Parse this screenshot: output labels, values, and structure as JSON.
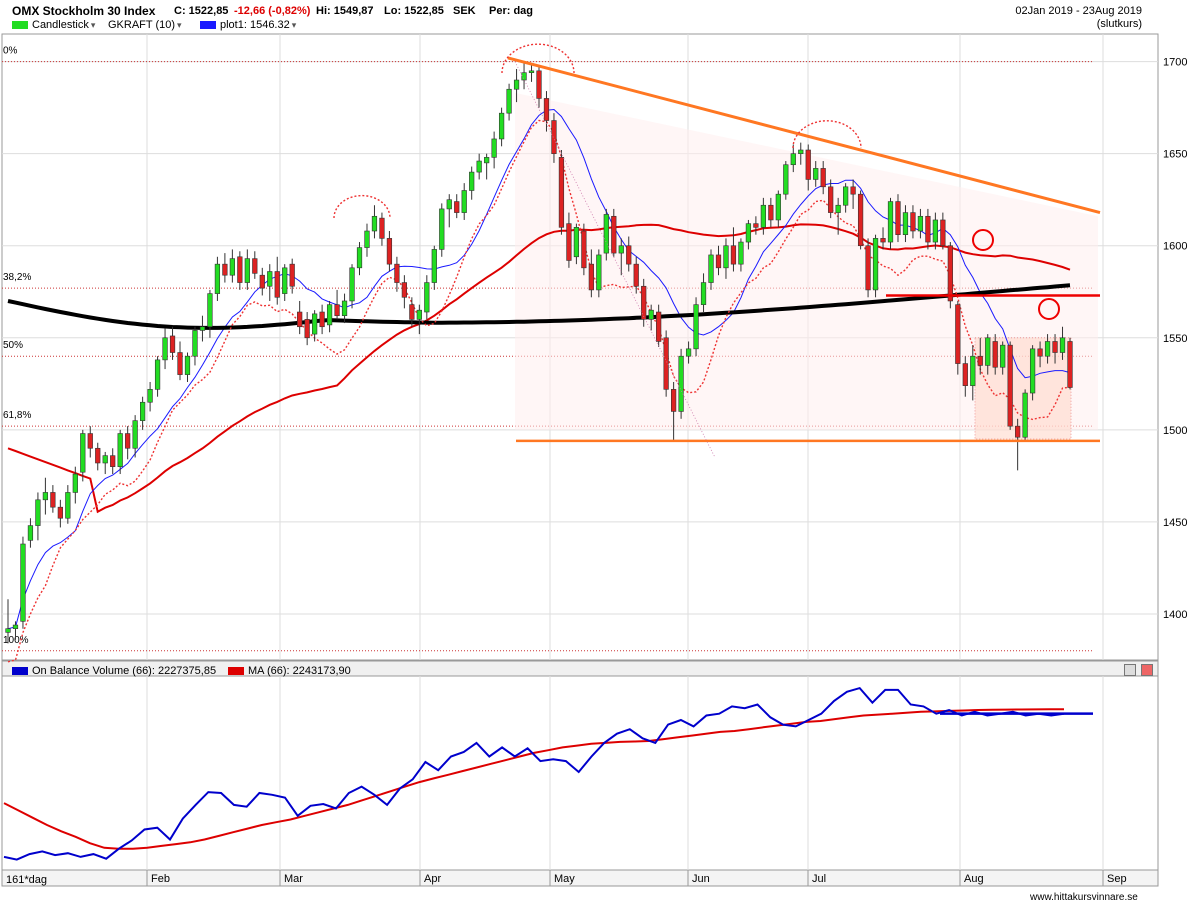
{
  "header": {
    "title": "OMX Stockholm 30 Index",
    "close": "C: 1522,85",
    "change": "-12,66 (-0,82%)",
    "high": "Hi: 1549,87",
    "low": "Lo: 1522,85",
    "currency": "SEK",
    "period": "Per: dag",
    "date_range": "02Jan 2019 - 23Aug 2019",
    "price_basis": "(slutkurs)"
  },
  "legend": {
    "candlestick": "Candlestick",
    "gkraft": "GKRAFT (10)",
    "plot1": "plot1: 1546.32",
    "obv": "On Balance Volume (66): 2227375,85",
    "ma": "MA (66): 2243173,90"
  },
  "footer": {
    "period_label": "161*dag",
    "watermark": "www.hittakursvinnare.se"
  },
  "colors": {
    "up": "#22dd22",
    "down": "#dd2222",
    "ma_red": "#dd0000",
    "ma_blue": "#1a1aff",
    "ma_black": "#000000",
    "trend_orange": "#ff7722",
    "obv_blue": "#0000cc"
  },
  "chart_data": [
    {
      "type": "candlestick",
      "name": "OMX Stockholm 30 Index",
      "ylim": [
        1375,
        1715
      ],
      "yticks": [
        "1400",
        "1450",
        "1500",
        "1550",
        "1600",
        "1650",
        "1700"
      ],
      "months": [
        "Feb",
        "Mar",
        "Apr",
        "May",
        "Jun",
        "Jul",
        "Aug",
        "Sep"
      ],
      "fib_levels": [
        {
          "label": "0%",
          "value": 1700
        },
        {
          "label": "38,2%",
          "value": 1577
        },
        {
          "label": "50%",
          "value": 1540
        },
        {
          "label": "61,8%",
          "value": 1502
        },
        {
          "label": "100%",
          "value": 1380
        }
      ],
      "horizontal_lines": {
        "support": 1494,
        "resistance": 1573
      },
      "ma_200_start": 1570,
      "candles": [
        {
          "o": 1390,
          "h": 1408,
          "l": 1384,
          "c": 1392
        },
        {
          "o": 1392,
          "h": 1396,
          "l": 1386,
          "c": 1394
        },
        {
          "o": 1396,
          "h": 1442,
          "l": 1392,
          "c": 1438
        },
        {
          "o": 1440,
          "h": 1452,
          "l": 1436,
          "c": 1448
        },
        {
          "o": 1448,
          "h": 1466,
          "l": 1440,
          "c": 1462
        },
        {
          "o": 1462,
          "h": 1474,
          "l": 1454,
          "c": 1466
        },
        {
          "o": 1466,
          "h": 1470,
          "l": 1455,
          "c": 1458
        },
        {
          "o": 1458,
          "h": 1462,
          "l": 1447,
          "c": 1452
        },
        {
          "o": 1452,
          "h": 1470,
          "l": 1449,
          "c": 1466
        },
        {
          "o": 1466,
          "h": 1480,
          "l": 1460,
          "c": 1476
        },
        {
          "o": 1477,
          "h": 1500,
          "l": 1472,
          "c": 1498
        },
        {
          "o": 1498,
          "h": 1502,
          "l": 1485,
          "c": 1490
        },
        {
          "o": 1490,
          "h": 1493,
          "l": 1478,
          "c": 1482
        },
        {
          "o": 1482,
          "h": 1488,
          "l": 1476,
          "c": 1486
        },
        {
          "o": 1486,
          "h": 1490,
          "l": 1476,
          "c": 1480
        },
        {
          "o": 1480,
          "h": 1500,
          "l": 1476,
          "c": 1498
        },
        {
          "o": 1498,
          "h": 1502,
          "l": 1484,
          "c": 1490
        },
        {
          "o": 1490,
          "h": 1508,
          "l": 1485,
          "c": 1505
        },
        {
          "o": 1505,
          "h": 1518,
          "l": 1500,
          "c": 1515
        },
        {
          "o": 1515,
          "h": 1526,
          "l": 1510,
          "c": 1522
        },
        {
          "o": 1522,
          "h": 1540,
          "l": 1518,
          "c": 1538
        },
        {
          "o": 1538,
          "h": 1555,
          "l": 1533,
          "c": 1550
        },
        {
          "o": 1551,
          "h": 1556,
          "l": 1538,
          "c": 1542
        },
        {
          "o": 1542,
          "h": 1548,
          "l": 1527,
          "c": 1530
        },
        {
          "o": 1530,
          "h": 1542,
          "l": 1526,
          "c": 1540
        },
        {
          "o": 1540,
          "h": 1556,
          "l": 1535,
          "c": 1554
        },
        {
          "o": 1554,
          "h": 1562,
          "l": 1548,
          "c": 1556
        },
        {
          "o": 1556,
          "h": 1576,
          "l": 1550,
          "c": 1574
        },
        {
          "o": 1574,
          "h": 1594,
          "l": 1570,
          "c": 1590
        },
        {
          "o": 1590,
          "h": 1596,
          "l": 1580,
          "c": 1584
        },
        {
          "o": 1584,
          "h": 1598,
          "l": 1580,
          "c": 1593
        },
        {
          "o": 1594,
          "h": 1597,
          "l": 1576,
          "c": 1580
        },
        {
          "o": 1580,
          "h": 1598,
          "l": 1576,
          "c": 1593
        },
        {
          "o": 1593,
          "h": 1597,
          "l": 1582,
          "c": 1585
        },
        {
          "o": 1584,
          "h": 1588,
          "l": 1573,
          "c": 1577
        },
        {
          "o": 1578,
          "h": 1590,
          "l": 1570,
          "c": 1586
        },
        {
          "o": 1586,
          "h": 1594,
          "l": 1568,
          "c": 1572
        },
        {
          "o": 1574,
          "h": 1590,
          "l": 1570,
          "c": 1588
        },
        {
          "o": 1590,
          "h": 1593,
          "l": 1574,
          "c": 1578
        },
        {
          "o": 1564,
          "h": 1570,
          "l": 1552,
          "c": 1556
        },
        {
          "o": 1560,
          "h": 1564,
          "l": 1546,
          "c": 1550
        },
        {
          "o": 1552,
          "h": 1565,
          "l": 1548,
          "c": 1563
        },
        {
          "o": 1564,
          "h": 1568,
          "l": 1552,
          "c": 1556
        },
        {
          "o": 1557,
          "h": 1570,
          "l": 1553,
          "c": 1568
        },
        {
          "o": 1568,
          "h": 1576,
          "l": 1560,
          "c": 1562
        },
        {
          "o": 1562,
          "h": 1574,
          "l": 1558,
          "c": 1570
        },
        {
          "o": 1570,
          "h": 1590,
          "l": 1566,
          "c": 1588
        },
        {
          "o": 1588,
          "h": 1602,
          "l": 1584,
          "c": 1599
        },
        {
          "o": 1599,
          "h": 1612,
          "l": 1594,
          "c": 1608
        },
        {
          "o": 1608,
          "h": 1622,
          "l": 1604,
          "c": 1616
        },
        {
          "o": 1615,
          "h": 1618,
          "l": 1600,
          "c": 1604
        },
        {
          "o": 1604,
          "h": 1608,
          "l": 1586,
          "c": 1590
        },
        {
          "o": 1590,
          "h": 1594,
          "l": 1575,
          "c": 1580
        },
        {
          "o": 1580,
          "h": 1584,
          "l": 1566,
          "c": 1572
        },
        {
          "o": 1568,
          "h": 1572,
          "l": 1556,
          "c": 1560
        },
        {
          "o": 1560,
          "h": 1568,
          "l": 1552,
          "c": 1565
        },
        {
          "o": 1564,
          "h": 1584,
          "l": 1560,
          "c": 1580
        },
        {
          "o": 1580,
          "h": 1600,
          "l": 1576,
          "c": 1598
        },
        {
          "o": 1598,
          "h": 1623,
          "l": 1594,
          "c": 1620
        },
        {
          "o": 1620,
          "h": 1628,
          "l": 1610,
          "c": 1625
        },
        {
          "o": 1624,
          "h": 1628,
          "l": 1615,
          "c": 1618
        },
        {
          "o": 1618,
          "h": 1634,
          "l": 1614,
          "c": 1630
        },
        {
          "o": 1630,
          "h": 1643,
          "l": 1625,
          "c": 1640
        },
        {
          "o": 1640,
          "h": 1650,
          "l": 1636,
          "c": 1646
        },
        {
          "o": 1645,
          "h": 1650,
          "l": 1636,
          "c": 1648
        },
        {
          "o": 1648,
          "h": 1662,
          "l": 1642,
          "c": 1658
        },
        {
          "o": 1658,
          "h": 1675,
          "l": 1654,
          "c": 1672
        },
        {
          "o": 1672,
          "h": 1688,
          "l": 1668,
          "c": 1685
        },
        {
          "o": 1685,
          "h": 1696,
          "l": 1678,
          "c": 1690
        },
        {
          "o": 1690,
          "h": 1700,
          "l": 1685,
          "c": 1694
        },
        {
          "o": 1694,
          "h": 1698,
          "l": 1689,
          "c": 1695
        },
        {
          "o": 1695,
          "h": 1698,
          "l": 1675,
          "c": 1680
        },
        {
          "o": 1680,
          "h": 1684,
          "l": 1662,
          "c": 1668
        },
        {
          "o": 1668,
          "h": 1672,
          "l": 1645,
          "c": 1650
        },
        {
          "o": 1648,
          "h": 1652,
          "l": 1606,
          "c": 1610
        },
        {
          "o": 1612,
          "h": 1618,
          "l": 1588,
          "c": 1592
        },
        {
          "o": 1594,
          "h": 1612,
          "l": 1590,
          "c": 1610
        },
        {
          "o": 1608,
          "h": 1612,
          "l": 1584,
          "c": 1588
        },
        {
          "o": 1590,
          "h": 1598,
          "l": 1572,
          "c": 1576
        },
        {
          "o": 1576,
          "h": 1598,
          "l": 1572,
          "c": 1595
        },
        {
          "o": 1596,
          "h": 1620,
          "l": 1592,
          "c": 1617
        },
        {
          "o": 1616,
          "h": 1620,
          "l": 1594,
          "c": 1596
        },
        {
          "o": 1596,
          "h": 1604,
          "l": 1584,
          "c": 1600
        },
        {
          "o": 1600,
          "h": 1605,
          "l": 1586,
          "c": 1590
        },
        {
          "o": 1590,
          "h": 1594,
          "l": 1574,
          "c": 1578
        },
        {
          "o": 1578,
          "h": 1582,
          "l": 1556,
          "c": 1560
        },
        {
          "o": 1560,
          "h": 1568,
          "l": 1554,
          "c": 1565
        },
        {
          "o": 1564,
          "h": 1568,
          "l": 1545,
          "c": 1548
        },
        {
          "o": 1550,
          "h": 1554,
          "l": 1518,
          "c": 1522
        },
        {
          "o": 1522,
          "h": 1526,
          "l": 1494,
          "c": 1510
        },
        {
          "o": 1510,
          "h": 1544,
          "l": 1506,
          "c": 1540
        },
        {
          "o": 1540,
          "h": 1548,
          "l": 1536,
          "c": 1544
        },
        {
          "o": 1544,
          "h": 1572,
          "l": 1540,
          "c": 1568
        },
        {
          "o": 1568,
          "h": 1585,
          "l": 1564,
          "c": 1580
        },
        {
          "o": 1580,
          "h": 1598,
          "l": 1576,
          "c": 1595
        },
        {
          "o": 1595,
          "h": 1600,
          "l": 1584,
          "c": 1588
        },
        {
          "o": 1588,
          "h": 1604,
          "l": 1582,
          "c": 1600
        },
        {
          "o": 1600,
          "h": 1610,
          "l": 1586,
          "c": 1590
        },
        {
          "o": 1590,
          "h": 1604,
          "l": 1586,
          "c": 1602
        },
        {
          "o": 1602,
          "h": 1614,
          "l": 1598,
          "c": 1612
        },
        {
          "o": 1612,
          "h": 1616,
          "l": 1606,
          "c": 1610
        },
        {
          "o": 1610,
          "h": 1626,
          "l": 1606,
          "c": 1622
        },
        {
          "o": 1622,
          "h": 1626,
          "l": 1610,
          "c": 1614
        },
        {
          "o": 1614,
          "h": 1630,
          "l": 1610,
          "c": 1628
        },
        {
          "o": 1628,
          "h": 1646,
          "l": 1625,
          "c": 1644
        },
        {
          "o": 1644,
          "h": 1655,
          "l": 1640,
          "c": 1650
        },
        {
          "o": 1650,
          "h": 1656,
          "l": 1644,
          "c": 1652
        },
        {
          "o": 1652,
          "h": 1655,
          "l": 1630,
          "c": 1636
        },
        {
          "o": 1636,
          "h": 1646,
          "l": 1632,
          "c": 1642
        },
        {
          "o": 1642,
          "h": 1646,
          "l": 1628,
          "c": 1632
        },
        {
          "o": 1632,
          "h": 1636,
          "l": 1615,
          "c": 1618
        },
        {
          "o": 1618,
          "h": 1626,
          "l": 1606,
          "c": 1622
        },
        {
          "o": 1622,
          "h": 1634,
          "l": 1618,
          "c": 1632
        },
        {
          "o": 1632,
          "h": 1636,
          "l": 1620,
          "c": 1628
        },
        {
          "o": 1628,
          "h": 1630,
          "l": 1598,
          "c": 1600
        },
        {
          "o": 1600,
          "h": 1604,
          "l": 1572,
          "c": 1576
        },
        {
          "o": 1576,
          "h": 1606,
          "l": 1572,
          "c": 1604
        },
        {
          "o": 1604,
          "h": 1610,
          "l": 1598,
          "c": 1602
        },
        {
          "o": 1602,
          "h": 1626,
          "l": 1598,
          "c": 1624
        },
        {
          "o": 1624,
          "h": 1628,
          "l": 1602,
          "c": 1606
        },
        {
          "o": 1606,
          "h": 1622,
          "l": 1602,
          "c": 1618
        },
        {
          "o": 1618,
          "h": 1622,
          "l": 1604,
          "c": 1608
        },
        {
          "o": 1608,
          "h": 1620,
          "l": 1604,
          "c": 1616
        },
        {
          "o": 1616,
          "h": 1620,
          "l": 1598,
          "c": 1602
        },
        {
          "o": 1602,
          "h": 1618,
          "l": 1598,
          "c": 1614
        },
        {
          "o": 1614,
          "h": 1618,
          "l": 1598,
          "c": 1600
        },
        {
          "o": 1600,
          "h": 1602,
          "l": 1566,
          "c": 1570
        },
        {
          "o": 1568,
          "h": 1570,
          "l": 1530,
          "c": 1536
        },
        {
          "o": 1536,
          "h": 1540,
          "l": 1518,
          "c": 1524
        },
        {
          "o": 1524,
          "h": 1546,
          "l": 1516,
          "c": 1540
        },
        {
          "o": 1540,
          "h": 1550,
          "l": 1530,
          "c": 1535
        },
        {
          "o": 1535,
          "h": 1552,
          "l": 1530,
          "c": 1550
        },
        {
          "o": 1548,
          "h": 1552,
          "l": 1530,
          "c": 1534
        },
        {
          "o": 1534,
          "h": 1548,
          "l": 1530,
          "c": 1546
        },
        {
          "o": 1546,
          "h": 1548,
          "l": 1500,
          "c": 1502
        },
        {
          "o": 1502,
          "h": 1506,
          "l": 1478,
          "c": 1496
        },
        {
          "o": 1496,
          "h": 1522,
          "l": 1494,
          "c": 1520
        },
        {
          "o": 1520,
          "h": 1546,
          "l": 1516,
          "c": 1544
        },
        {
          "o": 1544,
          "h": 1548,
          "l": 1534,
          "c": 1540
        },
        {
          "o": 1540,
          "h": 1552,
          "l": 1536,
          "c": 1548
        },
        {
          "o": 1548,
          "h": 1552,
          "l": 1536,
          "c": 1542
        },
        {
          "o": 1542,
          "h": 1556,
          "l": 1538,
          "c": 1550
        },
        {
          "o": 1548,
          "h": 1550,
          "l": 1522,
          "c": 1523
        }
      ]
    },
    {
      "type": "line",
      "name": "On Balance Volume",
      "series": [
        {
          "name": "On Balance Volume (66)",
          "values": [
            -50,
            -80,
            -20,
            10,
            -30,
            -10,
            -50,
            -20,
            -70,
            40,
            130,
            250,
            270,
            140,
            370,
            520,
            660,
            650,
            520,
            500,
            650,
            630,
            600,
            400,
            510,
            530,
            480,
            650,
            720,
            630,
            520,
            700,
            800,
            990,
            900,
            1050,
            1100,
            1200,
            1050,
            1150,
            1050,
            1140,
            1000,
            1020,
            1000,
            880,
            1050,
            1200,
            1300,
            1350,
            1250,
            1200,
            1400,
            1450,
            1380,
            1500,
            1520,
            1600,
            1580,
            1620,
            1480,
            1400,
            1380,
            1450,
            1520,
            1660,
            1760,
            1800,
            1640,
            1780,
            1780,
            1620,
            1600,
            1520,
            1560,
            1500,
            1540,
            1500,
            1520,
            1540,
            1500,
            1520,
            1500,
            1520
          ]
        },
        {
          "name": "MA (66)",
          "values": [
            540,
            460,
            380,
            300,
            230,
            170,
            100,
            50,
            40,
            40,
            50,
            70,
            90,
            110,
            140,
            180,
            220,
            260,
            300,
            330,
            360,
            400,
            440,
            480,
            520,
            570,
            620,
            670,
            720,
            770,
            810,
            850,
            890,
            930,
            970,
            1010,
            1050,
            1090,
            1120,
            1150,
            1170,
            1190,
            1200,
            1210,
            1215,
            1220,
            1240,
            1260,
            1280,
            1300,
            1320,
            1330,
            1350,
            1370,
            1390,
            1410,
            1430,
            1440,
            1460,
            1480,
            1500,
            1510,
            1520,
            1530,
            1540,
            1545,
            1550,
            1555,
            1560,
            1562,
            1564,
            1566,
            1567,
            1568,
            1568
          ]
        }
      ],
      "horizontal_line": 1520
    }
  ]
}
